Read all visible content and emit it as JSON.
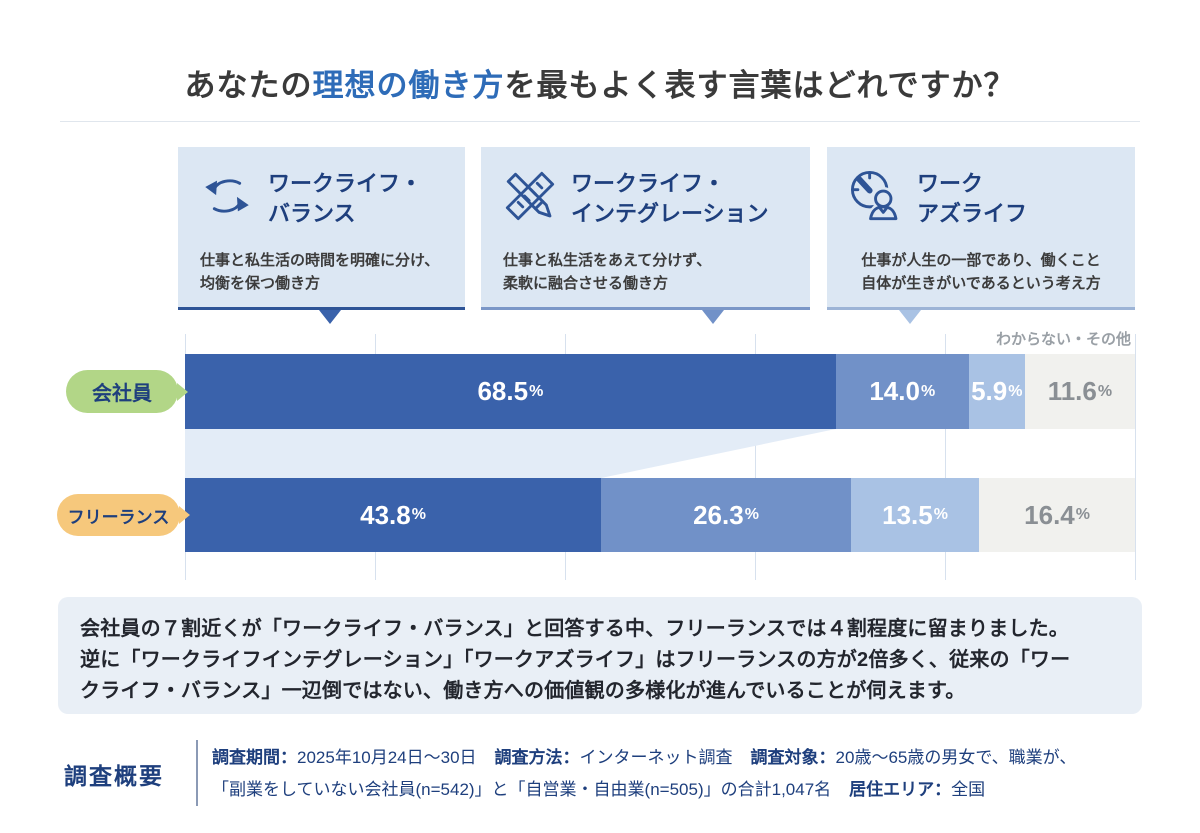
{
  "title": {
    "prefix": "あなたの",
    "highlight": "理想の働き方",
    "suffix": "を最もよく表す言葉はどれですか？",
    "highlight_color": "#2e6cb8"
  },
  "cards": [
    {
      "icon": "cycle-arrows-icon",
      "title_line1": "ワークライフ・",
      "title_line2": "バランス",
      "desc_line1": "仕事と私生活の時間を明確に分け、",
      "desc_line2": "均衡を保つ働き方",
      "line_color": "#2e5496"
    },
    {
      "icon": "pencil-ruler-icon",
      "title_line1": "ワークライフ・",
      "title_line2": "インテグレーション",
      "desc_line1": "仕事と私生活をあえて分けず、",
      "desc_line2": "柔軟に融合させる働き方",
      "line_color": "#7b97c7"
    },
    {
      "icon": "clock-person-icon",
      "title_line1": "ワーク",
      "title_line2": "アズライフ",
      "desc_line1": "仕事が人生の一部であり、働くこと",
      "desc_line2": "自体が生きがいであるという考え方",
      "line_color": "#9db4d6"
    }
  ],
  "rows": [
    {
      "label": "会社員",
      "pill_color": "#b2d687"
    },
    {
      "label": "フリーランス",
      "pill_color": "#f6c87c"
    }
  ],
  "chart_data": {
    "type": "bar",
    "orientation": "horizontal-stacked",
    "unit": "%",
    "categories": [
      "会社員",
      "フリーランス"
    ],
    "series": [
      {
        "name": "ワークライフ・バランス",
        "color": "#3a62ab",
        "text_color": "#ffffff",
        "values": [
          68.5,
          43.8
        ]
      },
      {
        "name": "ワークライフ・インテグレーション",
        "color": "#7191c8",
        "text_color": "#ffffff",
        "values": [
          14.0,
          26.3
        ]
      },
      {
        "name": "ワークアズライフ",
        "color": "#a9c2e4",
        "text_color": "#ffffff",
        "values": [
          5.9,
          13.5
        ]
      },
      {
        "name": "わからない・その他",
        "color": "#f1f1ee",
        "text_color": "#8a8f94",
        "values": [
          11.6,
          16.4
        ]
      }
    ],
    "xlim": [
      0,
      100
    ],
    "grid_step": 20,
    "grid_on": true,
    "grid_color": "#d7e1ee",
    "connector_color": "#e3ecf7",
    "other_label": "わからない・その他"
  },
  "summary": {
    "lines": [
      "会社員の７割近くが「ワークライフ・バランス」と回答する中、フリーランスでは４割程度に留まりました。",
      "逆に「ワークライフインテグレーション」「ワークアズライフ」はフリーランスの方が2倍多く、従来の「ワー",
      "クライフ・バランス」一辺倒ではない、働き方への価値観の多様化が進んでいることが伺えます。"
    ]
  },
  "survey": {
    "heading": "調査概要",
    "line1": [
      {
        "label": "調査期間：",
        "value": "2025年10月24日〜30日"
      },
      {
        "label": "調査方法：",
        "value": "インターネット調査"
      },
      {
        "label": "調査対象：",
        "value": "20歳〜65歳の男女で、職業が、"
      }
    ],
    "line2": [
      {
        "label": "",
        "value": "「副業をしていない会社員(n=542)」と「自営業・自由業(n=505)」の合計1,047名"
      },
      {
        "label": "居住エリア：",
        "value": "全国"
      }
    ]
  }
}
